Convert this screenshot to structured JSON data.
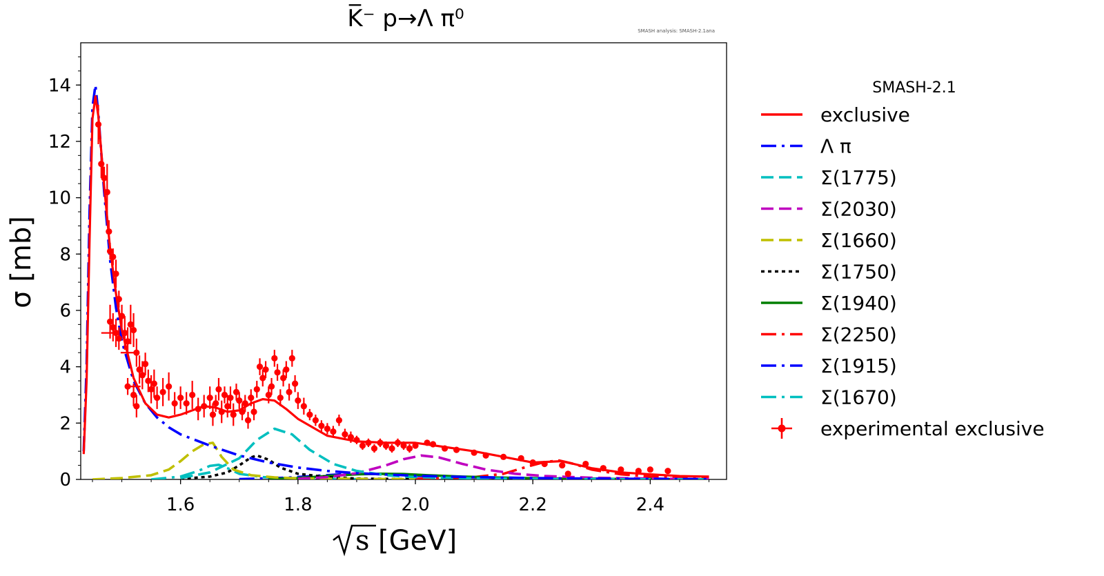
{
  "chart_data": {
    "type": "line",
    "title": "K̅⁻ p→Λ π⁰",
    "watermark": "SMASH analysis: SMASH-2.1ana",
    "xlabel_unit": "[GeV]",
    "xlabel_symbol": "s",
    "ylabel": "σ [mb]",
    "xlim": [
      1.43,
      2.53
    ],
    "ylim": [
      0,
      15.5
    ],
    "xticks": [
      1.6,
      1.8,
      2.0,
      2.2,
      2.4
    ],
    "xtick_labels": [
      "1.6",
      "1.8",
      "2.0",
      "2.2",
      "2.4"
    ],
    "yticks": [
      0,
      2,
      4,
      6,
      8,
      10,
      12,
      14
    ],
    "ytick_labels": [
      "0",
      "2",
      "4",
      "6",
      "8",
      "10",
      "12",
      "14"
    ],
    "legend_title": "SMASH-2.1",
    "legend_position": "outside-right",
    "series": [
      {
        "name": "exclusive",
        "color": "#ff0000",
        "style": "solid",
        "x": [
          1.435,
          1.44,
          1.445,
          1.45,
          1.455,
          1.46,
          1.47,
          1.48,
          1.49,
          1.5,
          1.52,
          1.54,
          1.56,
          1.58,
          1.6,
          1.62,
          1.64,
          1.66,
          1.68,
          1.7,
          1.72,
          1.74,
          1.76,
          1.78,
          1.8,
          1.85,
          1.9,
          1.95,
          2.0,
          2.05,
          2.1,
          2.15,
          2.2,
          2.25,
          2.3,
          2.35,
          2.4,
          2.45,
          2.5
        ],
        "y": [
          0.9,
          3.5,
          8.5,
          12.8,
          13.6,
          12.9,
          10.4,
          8.2,
          6.6,
          5.3,
          3.6,
          2.7,
          2.3,
          2.2,
          2.3,
          2.45,
          2.6,
          2.55,
          2.4,
          2.45,
          2.7,
          2.85,
          2.8,
          2.5,
          2.15,
          1.55,
          1.35,
          1.3,
          1.3,
          1.15,
          1.0,
          0.8,
          0.6,
          0.65,
          0.4,
          0.25,
          0.18,
          0.12,
          0.1
        ]
      },
      {
        "name": "Λ π",
        "color": "#0000ff",
        "style": "dashdot",
        "x": [
          1.435,
          1.44,
          1.445,
          1.45,
          1.455,
          1.46,
          1.47,
          1.48,
          1.49,
          1.5,
          1.52,
          1.54,
          1.56,
          1.58,
          1.6,
          1.65,
          1.7,
          1.75,
          1.8,
          1.85,
          1.9,
          2.0,
          2.1,
          2.2,
          2.3,
          2.4,
          2.5
        ],
        "y": [
          1.0,
          4.0,
          9.5,
          13.2,
          14.0,
          13.0,
          10.2,
          7.8,
          6.1,
          4.9,
          3.5,
          2.7,
          2.2,
          1.85,
          1.6,
          1.2,
          0.85,
          0.6,
          0.42,
          0.3,
          0.22,
          0.13,
          0.08,
          0.05,
          0.03,
          0.02,
          0.01
        ]
      },
      {
        "name": "Σ(1775)",
        "color": "#00bfbf",
        "style": "dash",
        "x": [
          1.6,
          1.65,
          1.7,
          1.73,
          1.76,
          1.79,
          1.82,
          1.86,
          1.9,
          1.95,
          2.0,
          2.1,
          2.2,
          2.3,
          2.5
        ],
        "y": [
          0.05,
          0.25,
          0.75,
          1.4,
          1.8,
          1.6,
          1.05,
          0.55,
          0.3,
          0.15,
          0.08,
          0.04,
          0.02,
          0.01,
          0.0
        ]
      },
      {
        "name": "Σ(2030)",
        "color": "#bf00bf",
        "style": "dash",
        "x": [
          1.8,
          1.85,
          1.9,
          1.95,
          1.98,
          2.01,
          2.04,
          2.08,
          2.12,
          2.17,
          2.22,
          2.3,
          2.4,
          2.5
        ],
        "y": [
          0.02,
          0.08,
          0.22,
          0.5,
          0.72,
          0.85,
          0.78,
          0.55,
          0.35,
          0.2,
          0.12,
          0.06,
          0.03,
          0.01
        ]
      },
      {
        "name": "Σ(1660)",
        "color": "#bfbf00",
        "style": "dash",
        "x": [
          1.45,
          1.5,
          1.55,
          1.58,
          1.6,
          1.62,
          1.64,
          1.655,
          1.67,
          1.69,
          1.72,
          1.76,
          1.8,
          1.9,
          2.0
        ],
        "y": [
          0.0,
          0.05,
          0.15,
          0.35,
          0.65,
          1.0,
          1.25,
          1.3,
          0.8,
          0.35,
          0.15,
          0.07,
          0.04,
          0.02,
          0.01
        ]
      },
      {
        "name": "Σ(1750)",
        "color": "#000000",
        "style": "dot",
        "x": [
          1.6,
          1.65,
          1.68,
          1.7,
          1.72,
          1.73,
          1.75,
          1.77,
          1.8,
          1.85,
          1.9,
          2.0
        ],
        "y": [
          0.02,
          0.1,
          0.25,
          0.5,
          0.78,
          0.85,
          0.7,
          0.42,
          0.2,
          0.08,
          0.03,
          0.01
        ]
      },
      {
        "name": "Σ(1940)",
        "color": "#007f00",
        "style": "solid",
        "x": [
          1.75,
          1.8,
          1.85,
          1.9,
          1.94,
          1.98,
          2.02,
          2.08,
          2.15,
          2.25,
          2.35,
          2.5
        ],
        "y": [
          0.01,
          0.05,
          0.12,
          0.18,
          0.2,
          0.19,
          0.15,
          0.1,
          0.06,
          0.03,
          0.015,
          0.005
        ]
      },
      {
        "name": "Σ(2250)",
        "color": "#ff0000",
        "style": "dashdot",
        "x": [
          2.0,
          2.1,
          2.15,
          2.19,
          2.22,
          2.245,
          2.27,
          2.3,
          2.35,
          2.4,
          2.5
        ],
        "y": [
          0.02,
          0.08,
          0.2,
          0.45,
          0.62,
          0.67,
          0.55,
          0.35,
          0.18,
          0.1,
          0.04
        ]
      },
      {
        "name": "Σ(1915)",
        "color": "#0000ff",
        "style": "dashdot",
        "x": [
          1.7,
          1.78,
          1.84,
          1.88,
          1.91,
          1.95,
          2.0,
          2.08,
          2.2,
          2.35,
          2.5
        ],
        "y": [
          0.01,
          0.06,
          0.14,
          0.19,
          0.2,
          0.18,
          0.13,
          0.08,
          0.04,
          0.02,
          0.01
        ]
      },
      {
        "name": "Σ(1670)",
        "color": "#00bfbf",
        "style": "dashdot",
        "x": [
          1.55,
          1.6,
          1.63,
          1.65,
          1.665,
          1.68,
          1.7,
          1.74,
          1.8,
          1.9
        ],
        "y": [
          0.0,
          0.1,
          0.3,
          0.48,
          0.52,
          0.4,
          0.2,
          0.08,
          0.03,
          0.01
        ]
      }
    ],
    "experimental": {
      "name": "experimental exclusive",
      "color": "#ff0000",
      "points": [
        [
          1.46,
          12.6,
          0.7
        ],
        [
          1.465,
          11.2,
          0.5
        ],
        [
          1.47,
          10.7,
          0.4
        ],
        [
          1.475,
          10.2,
          1.0
        ],
        [
          1.478,
          8.8,
          0.4
        ],
        [
          1.48,
          8.1,
          0.3
        ],
        [
          1.485,
          7.9,
          0.3
        ],
        [
          1.49,
          7.3,
          0.5
        ],
        [
          1.495,
          6.4,
          0.3
        ],
        [
          1.5,
          5.8,
          0.4
        ],
        [
          1.48,
          5.6,
          0.6
        ],
        [
          1.485,
          5.4,
          0.5
        ],
        [
          1.49,
          5.2,
          0.5
        ],
        [
          1.495,
          5.0,
          0.4
        ],
        [
          1.505,
          5.2,
          0.6
        ],
        [
          1.51,
          4.9,
          0.5
        ],
        [
          1.515,
          5.5,
          0.7
        ],
        [
          1.52,
          5.3,
          0.6
        ],
        [
          1.525,
          4.5,
          0.5
        ],
        [
          1.53,
          3.9,
          0.5
        ],
        [
          1.535,
          3.7,
          0.5
        ],
        [
          1.54,
          4.1,
          0.4
        ],
        [
          1.545,
          3.5,
          0.4
        ],
        [
          1.55,
          3.2,
          0.5
        ],
        [
          1.51,
          3.3,
          0.3
        ],
        [
          1.52,
          3.0,
          0.4
        ],
        [
          1.525,
          2.6,
          0.4
        ],
        [
          1.555,
          3.4,
          0.5
        ],
        [
          1.56,
          2.9,
          0.4
        ],
        [
          1.57,
          3.1,
          0.5
        ],
        [
          1.58,
          3.3,
          0.5
        ],
        [
          1.59,
          2.7,
          0.4
        ],
        [
          1.6,
          2.9,
          0.4
        ],
        [
          1.61,
          2.7,
          0.4
        ],
        [
          1.62,
          3.0,
          0.5
        ],
        [
          1.63,
          2.5,
          0.4
        ],
        [
          1.64,
          2.6,
          0.4
        ],
        [
          1.65,
          2.9,
          0.4
        ],
        [
          1.655,
          2.3,
          0.4
        ],
        [
          1.66,
          2.7,
          0.3
        ],
        [
          1.665,
          3.2,
          0.4
        ],
        [
          1.67,
          2.4,
          0.4
        ],
        [
          1.675,
          3.0,
          0.3
        ],
        [
          1.68,
          2.6,
          0.4
        ],
        [
          1.685,
          2.9,
          0.4
        ],
        [
          1.69,
          2.3,
          0.4
        ],
        [
          1.695,
          3.1,
          0.3
        ],
        [
          1.7,
          2.8,
          0.3
        ],
        [
          1.705,
          2.4,
          0.3
        ],
        [
          1.71,
          2.7,
          0.3
        ],
        [
          1.715,
          2.1,
          0.3
        ],
        [
          1.72,
          2.9,
          0.3
        ],
        [
          1.725,
          2.4,
          0.3
        ],
        [
          1.73,
          3.2,
          0.3
        ],
        [
          1.735,
          4.0,
          0.3
        ],
        [
          1.74,
          3.6,
          0.3
        ],
        [
          1.745,
          3.9,
          0.3
        ],
        [
          1.75,
          3.0,
          0.3
        ],
        [
          1.755,
          3.3,
          0.3
        ],
        [
          1.76,
          4.3,
          0.3
        ],
        [
          1.765,
          3.8,
          0.3
        ],
        [
          1.77,
          2.9,
          0.3
        ],
        [
          1.775,
          3.6,
          0.3
        ],
        [
          1.78,
          3.9,
          0.3
        ],
        [
          1.785,
          3.1,
          0.3
        ],
        [
          1.79,
          4.3,
          0.3
        ],
        [
          1.795,
          3.4,
          0.3
        ],
        [
          1.8,
          2.8,
          0.3
        ],
        [
          1.81,
          2.6,
          0.3
        ],
        [
          1.82,
          2.3,
          0.2
        ],
        [
          1.83,
          2.1,
          0.2
        ],
        [
          1.84,
          1.9,
          0.2
        ],
        [
          1.85,
          1.8,
          0.2
        ],
        [
          1.86,
          1.7,
          0.2
        ],
        [
          1.87,
          2.1,
          0.2
        ],
        [
          1.88,
          1.6,
          0.2
        ],
        [
          1.89,
          1.5,
          0.2
        ],
        [
          1.9,
          1.4,
          0.15
        ],
        [
          1.91,
          1.2,
          0.15
        ],
        [
          1.92,
          1.3,
          0.15
        ],
        [
          1.93,
          1.1,
          0.15
        ],
        [
          1.94,
          1.3,
          0.15
        ],
        [
          1.95,
          1.2,
          0.15
        ],
        [
          1.96,
          1.1,
          0.15
        ],
        [
          1.97,
          1.3,
          0.15
        ],
        [
          1.98,
          1.2,
          0.15
        ],
        [
          1.99,
          1.1,
          0.15
        ],
        [
          2.0,
          1.2,
          0.1
        ],
        [
          2.02,
          1.3,
          0.1
        ],
        [
          2.03,
          1.25,
          0.1
        ],
        [
          2.05,
          1.1,
          0.1
        ],
        [
          2.07,
          1.05,
          0.1
        ],
        [
          2.1,
          0.95,
          0.1
        ],
        [
          2.12,
          0.85,
          0.1
        ],
        [
          2.15,
          0.8,
          0.1
        ],
        [
          2.18,
          0.75,
          0.1
        ],
        [
          2.2,
          0.6,
          0.1
        ],
        [
          2.22,
          0.55,
          0.1
        ],
        [
          2.25,
          0.5,
          0.1
        ],
        [
          2.26,
          0.2,
          0.1
        ],
        [
          2.29,
          0.55,
          0.1
        ],
        [
          2.32,
          0.4,
          0.1
        ],
        [
          2.35,
          0.35,
          0.1
        ],
        [
          2.38,
          0.3,
          0.1
        ],
        [
          2.4,
          0.35,
          0.1
        ],
        [
          2.43,
          0.3,
          0.1
        ]
      ],
      "xerr_points": [
        [
          1.475,
          5.2,
          0.01
        ],
        [
          1.51,
          4.5,
          0.012
        ],
        [
          1.52,
          3.3,
          0.012
        ]
      ]
    }
  }
}
